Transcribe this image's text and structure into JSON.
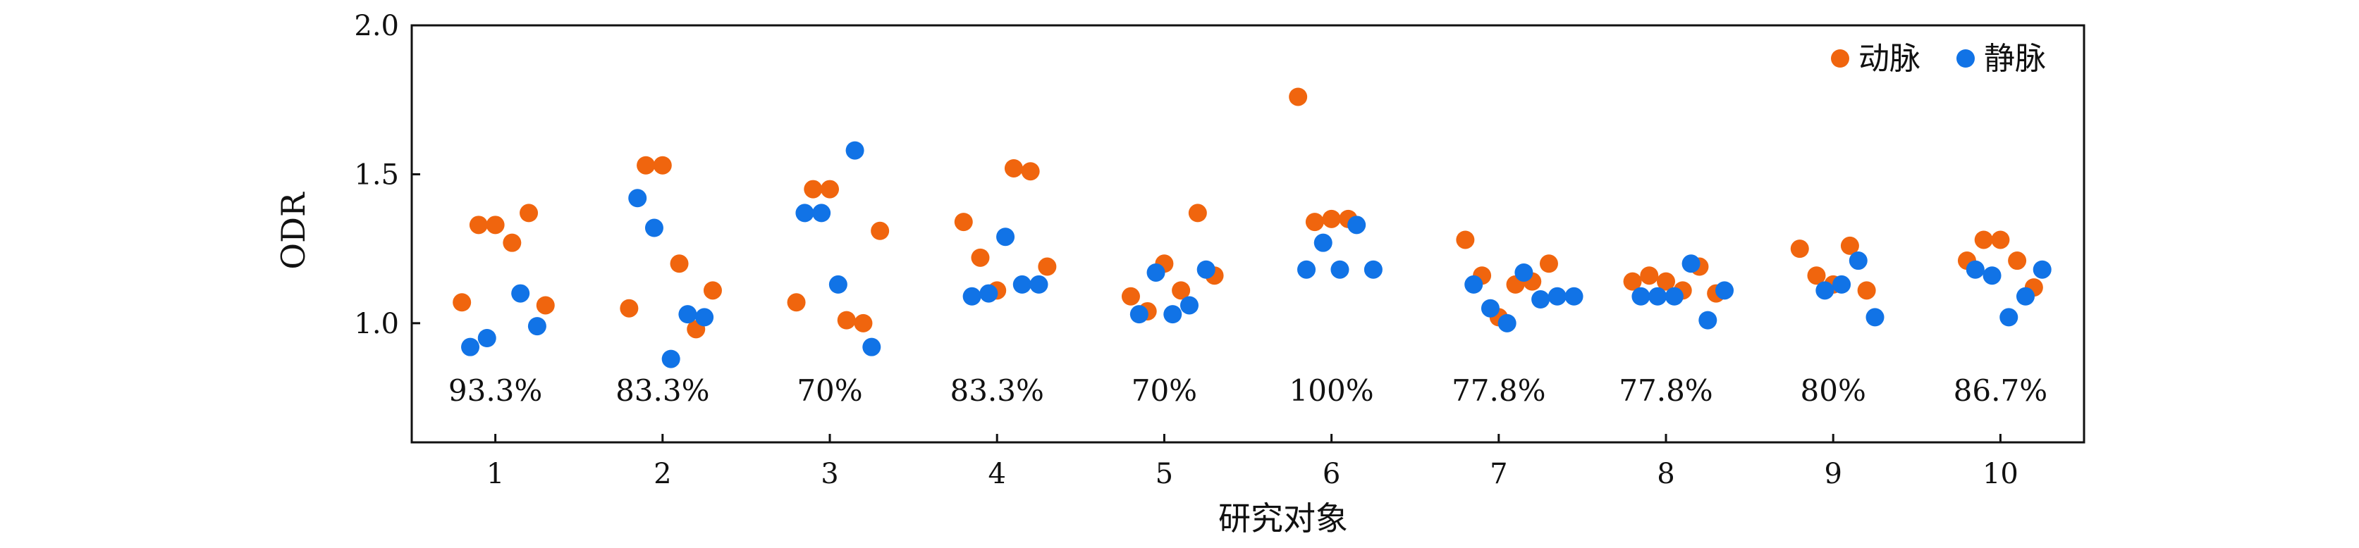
{
  "chart_data": {
    "type": "scatter",
    "ylabel": "ODR",
    "xlabel": "研究对象",
    "ylim": [
      0.6,
      2.0
    ],
    "xlim": [
      0.5,
      10.5
    ],
    "y_ticks": [
      "1.0",
      "1.5",
      "2.0"
    ],
    "y_tick_values": [
      1.0,
      1.5,
      2.0
    ],
    "categories": [
      "1",
      "2",
      "3",
      "4",
      "5",
      "6",
      "7",
      "8",
      "9",
      "10"
    ],
    "percent_labels": [
      "93.3%",
      "83.3%",
      "70%",
      "83.3%",
      "70%",
      "100%",
      "77.8%",
      "77.8%",
      "80%",
      "86.7%"
    ],
    "percent_label_y": 0.74,
    "legend_position": "top-right",
    "grid": false,
    "series": [
      {
        "name": "动脉",
        "color": "#f0650e",
        "points": [
          [
            0.8,
            1.07
          ],
          [
            0.9,
            1.33
          ],
          [
            1.0,
            1.33
          ],
          [
            1.1,
            1.27
          ],
          [
            1.2,
            1.37
          ],
          [
            1.3,
            1.06
          ],
          [
            1.8,
            1.05
          ],
          [
            1.9,
            1.53
          ],
          [
            2.0,
            1.53
          ],
          [
            2.1,
            1.2
          ],
          [
            2.2,
            0.98
          ],
          [
            2.3,
            1.11
          ],
          [
            2.8,
            1.07
          ],
          [
            2.9,
            1.45
          ],
          [
            3.0,
            1.45
          ],
          [
            3.1,
            1.01
          ],
          [
            3.2,
            1.0
          ],
          [
            3.3,
            1.31
          ],
          [
            3.8,
            1.34
          ],
          [
            3.9,
            1.22
          ],
          [
            4.0,
            1.11
          ],
          [
            4.1,
            1.52
          ],
          [
            4.2,
            1.51
          ],
          [
            4.3,
            1.19
          ],
          [
            4.8,
            1.09
          ],
          [
            4.9,
            1.04
          ],
          [
            5.0,
            1.2
          ],
          [
            5.1,
            1.11
          ],
          [
            5.2,
            1.37
          ],
          [
            5.3,
            1.16
          ],
          [
            5.8,
            1.76
          ],
          [
            5.9,
            1.34
          ],
          [
            6.0,
            1.35
          ],
          [
            6.1,
            1.35
          ],
          [
            6.8,
            1.28
          ],
          [
            6.9,
            1.16
          ],
          [
            7.0,
            1.02
          ],
          [
            7.1,
            1.13
          ],
          [
            7.2,
            1.14
          ],
          [
            7.3,
            1.2
          ],
          [
            7.8,
            1.14
          ],
          [
            7.9,
            1.16
          ],
          [
            8.0,
            1.14
          ],
          [
            8.1,
            1.11
          ],
          [
            8.2,
            1.19
          ],
          [
            8.3,
            1.1
          ],
          [
            8.8,
            1.25
          ],
          [
            8.9,
            1.16
          ],
          [
            9.0,
            1.13
          ],
          [
            9.1,
            1.26
          ],
          [
            9.2,
            1.11
          ],
          [
            9.8,
            1.21
          ],
          [
            9.9,
            1.28
          ],
          [
            10.0,
            1.28
          ],
          [
            10.1,
            1.21
          ],
          [
            10.2,
            1.12
          ]
        ]
      },
      {
        "name": "静脉",
        "color": "#1173e6",
        "points": [
          [
            0.85,
            0.92
          ],
          [
            0.95,
            0.95
          ],
          [
            1.15,
            1.1
          ],
          [
            1.25,
            0.99
          ],
          [
            1.85,
            1.42
          ],
          [
            1.95,
            1.32
          ],
          [
            2.05,
            0.88
          ],
          [
            2.15,
            1.03
          ],
          [
            2.25,
            1.02
          ],
          [
            2.85,
            1.37
          ],
          [
            2.95,
            1.37
          ],
          [
            3.05,
            1.13
          ],
          [
            3.15,
            1.58
          ],
          [
            3.25,
            0.92
          ],
          [
            3.85,
            1.09
          ],
          [
            3.95,
            1.1
          ],
          [
            4.05,
            1.29
          ],
          [
            4.15,
            1.13
          ],
          [
            4.25,
            1.13
          ],
          [
            4.85,
            1.03
          ],
          [
            4.95,
            1.17
          ],
          [
            5.05,
            1.03
          ],
          [
            5.15,
            1.06
          ],
          [
            5.25,
            1.18
          ],
          [
            5.85,
            1.18
          ],
          [
            5.95,
            1.27
          ],
          [
            6.05,
            1.18
          ],
          [
            6.15,
            1.33
          ],
          [
            6.25,
            1.18
          ],
          [
            6.85,
            1.13
          ],
          [
            6.95,
            1.05
          ],
          [
            7.05,
            1.0
          ],
          [
            7.15,
            1.17
          ],
          [
            7.25,
            1.08
          ],
          [
            7.35,
            1.09
          ],
          [
            7.45,
            1.09
          ],
          [
            7.85,
            1.09
          ],
          [
            7.95,
            1.09
          ],
          [
            8.05,
            1.09
          ],
          [
            8.15,
            1.2
          ],
          [
            8.25,
            1.01
          ],
          [
            8.35,
            1.11
          ],
          [
            8.95,
            1.11
          ],
          [
            9.05,
            1.13
          ],
          [
            9.15,
            1.21
          ],
          [
            9.25,
            1.02
          ],
          [
            9.85,
            1.18
          ],
          [
            9.95,
            1.16
          ],
          [
            10.05,
            1.02
          ],
          [
            10.15,
            1.09
          ],
          [
            10.25,
            1.18
          ]
        ]
      }
    ]
  }
}
